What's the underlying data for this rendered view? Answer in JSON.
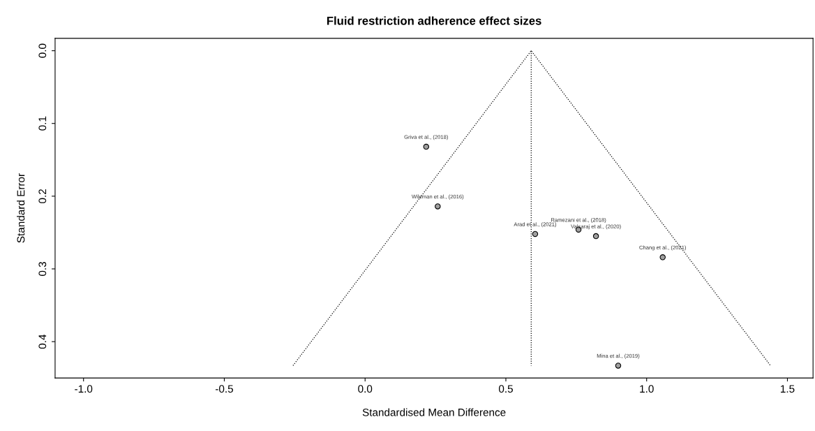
{
  "chart_data": {
    "type": "scatter",
    "title": "Fluid restriction adherence effect sizes",
    "xlabel": "Standardised Mean Difference",
    "ylabel": "Standard Error",
    "xlim": [
      -1.101,
      1.591
    ],
    "ylim": [
      0.45,
      -0.017
    ],
    "xticks": [
      {
        "value": -1.0,
        "label": "-1.0"
      },
      {
        "value": -0.5,
        "label": "-0.5"
      },
      {
        "value": 0.0,
        "label": "0.0"
      },
      {
        "value": 0.5,
        "label": "0.5"
      },
      {
        "value": 1.0,
        "label": "1.0"
      },
      {
        "value": 1.5,
        "label": "1.5"
      }
    ],
    "yticks": [
      {
        "value": 0.0,
        "label": "0.0"
      },
      {
        "value": 0.1,
        "label": "0.1"
      },
      {
        "value": 0.2,
        "label": "0.2"
      },
      {
        "value": 0.3,
        "label": "0.3"
      },
      {
        "value": 0.4,
        "label": "0.4"
      }
    ],
    "grid": false,
    "legend": false,
    "series": [
      {
        "type": "line",
        "color": "#000000",
        "line_style": "dotted",
        "marker": "none",
        "x": [
          -0.256,
          0.59,
          1.44
        ],
        "values": [
          0.433,
          0.0,
          0.433
        ]
      },
      {
        "type": "line",
        "color": "#000000",
        "line_style": "dotted",
        "marker": "none",
        "x": [
          0.59,
          0.59
        ],
        "values": [
          0.0,
          0.433
        ]
      },
      {
        "color": "#a0a0a0",
        "marker": "circle",
        "x": [
          0.217,
          0.258,
          0.604,
          0.758,
          0.82,
          1.057,
          0.899
        ],
        "values": [
          0.132,
          0.214,
          0.252,
          0.246,
          0.255,
          0.284,
          0.433
        ]
      }
    ],
    "annotations": [
      {
        "text": "Griva et al., (2018)",
        "x": 0.217,
        "y": 0.132
      },
      {
        "text": "Wileman et al., (2016)",
        "x": 0.258,
        "y": 0.214
      },
      {
        "text": "Arad et al., (2021)",
        "x": 0.604,
        "y": 0.252
      },
      {
        "text": "Ramezani et al., (2018)",
        "x": 0.758,
        "y": 0.246
      },
      {
        "text": "Valsaraj et al., (2020)",
        "x": 0.82,
        "y": 0.255
      },
      {
        "text": "Chang et al., (2021)",
        "x": 1.057,
        "y": 0.284
      },
      {
        "text": "Mina et al., (2019)",
        "x": 0.899,
        "y": 0.433
      }
    ]
  }
}
